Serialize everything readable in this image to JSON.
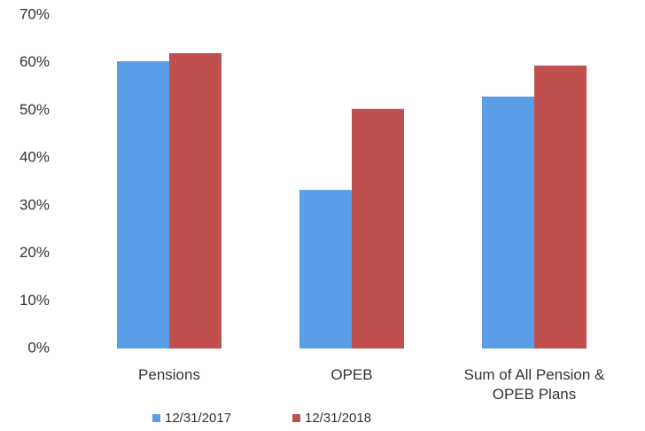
{
  "chart_data": {
    "type": "bar",
    "categories": [
      "Pensions",
      "OPEB",
      "Sum of All Pension & OPEB Plans"
    ],
    "series": [
      {
        "name": "12/31/2017",
        "color": "#5b9ee8",
        "values": [
          60.3,
          33.3,
          52.9
        ]
      },
      {
        "name": "12/31/2018",
        "color": "#c0504d",
        "values": [
          62.0,
          50.3,
          59.4
        ]
      }
    ],
    "ylim": [
      0,
      70
    ],
    "yticks": [
      {
        "value": 0,
        "label": "0%"
      },
      {
        "value": 10,
        "label": "10%"
      },
      {
        "value": 20,
        "label": "20%"
      },
      {
        "value": 30,
        "label": "30%"
      },
      {
        "value": 40,
        "label": "40%"
      },
      {
        "value": 50,
        "label": "50%"
      },
      {
        "value": 60,
        "label": "60%"
      },
      {
        "value": 70,
        "label": "70%"
      }
    ],
    "grid": false,
    "legend": "bottom"
  }
}
